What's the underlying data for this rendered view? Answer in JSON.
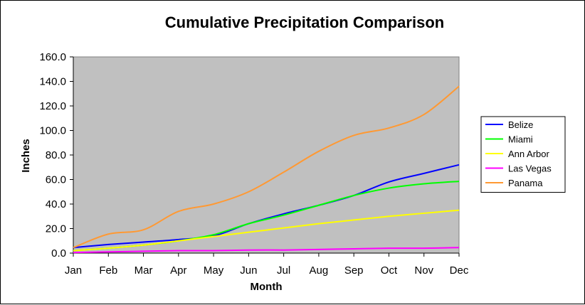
{
  "chart_data": {
    "type": "line",
    "title": "Cumulative Precipitation Comparison",
    "xlabel": "Month",
    "ylabel": "Inches",
    "categories": [
      "Jan",
      "Feb",
      "Mar",
      "Apr",
      "May",
      "Jun",
      "Jul",
      "Aug",
      "Sep",
      "Oct",
      "Nov",
      "Dec"
    ],
    "ylim": [
      0,
      160
    ],
    "yticks": [
      "0.0",
      "20.0",
      "40.0",
      "60.0",
      "80.0",
      "100.0",
      "120.0",
      "140.0",
      "160.0"
    ],
    "grid": false,
    "plot_background": "#c0c0c0",
    "legend_position": "right",
    "series": [
      {
        "name": "Belize",
        "color": "#0000ff",
        "values": [
          4.5,
          7,
          9,
          11,
          14,
          24,
          32,
          39,
          47,
          58,
          65,
          72
        ]
      },
      {
        "name": "Miami",
        "color": "#00ff00",
        "values": [
          2,
          4,
          6.5,
          10,
          15,
          24,
          31,
          39,
          47,
          53,
          56.5,
          58.5
        ]
      },
      {
        "name": "Ann Arbor",
        "color": "#ffff00",
        "values": [
          2,
          4,
          6.5,
          10,
          13.5,
          17,
          20.5,
          24,
          27,
          30,
          32.5,
          35
        ]
      },
      {
        "name": "Las Vegas",
        "color": "#ff00ff",
        "values": [
          0.5,
          1,
          1.5,
          2,
          2,
          2.5,
          2.5,
          3,
          3.5,
          4,
          4,
          4.5
        ]
      },
      {
        "name": "Panama",
        "color": "#ff9933",
        "values": [
          4.5,
          15.5,
          19,
          34,
          40,
          50,
          66,
          83,
          96,
          102,
          113,
          136
        ]
      }
    ]
  }
}
